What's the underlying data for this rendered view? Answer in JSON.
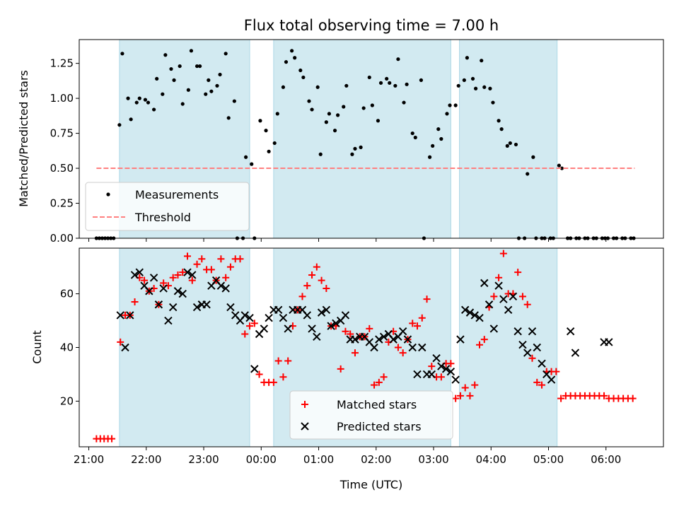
{
  "chart_data": [
    {
      "type": "scatter",
      "title": "Flux total observing time = 7.00 h",
      "xlabel": "",
      "ylabel": "Matched/Predicted stars",
      "xlim": [
        "20:50",
        "07:00"
      ],
      "ylim": [
        0,
        1.42
      ],
      "yticks": [
        0.0,
        0.25,
        0.5,
        0.75,
        1.0,
        1.25
      ],
      "ytick_labels": [
        "0.00",
        "0.25",
        "0.50",
        "0.75",
        "1.00",
        "1.25"
      ],
      "shaded_intervals": [
        [
          "21:32",
          "23:48"
        ],
        [
          "00:13",
          "03:18"
        ],
        [
          "03:27",
          "05:09"
        ]
      ],
      "shade_color": "#add8e6",
      "legend_position": "lower left",
      "series": [
        {
          "name": "Measurements",
          "color": "#000000",
          "marker": "dot",
          "x": [
            "21:08",
            "21:11",
            "21:14",
            "21:17",
            "21:20",
            "21:23",
            "21:26",
            "21:32",
            "21:35",
            "21:41",
            "21:44",
            "21:50",
            "21:53",
            "21:59",
            "22:02",
            "22:08",
            "22:11",
            "22:17",
            "22:20",
            "22:26",
            "22:29",
            "22:35",
            "22:38",
            "22:44",
            "22:47",
            "22:53",
            "22:56",
            "23:02",
            "23:05",
            "23:08",
            "23:14",
            "23:17",
            "23:23",
            "23:26",
            "23:32",
            "23:35",
            "23:41",
            "23:44",
            "23:50",
            "23:53",
            "23:59",
            "24:05",
            "24:08",
            "24:14",
            "24:17",
            "24:23",
            "24:26",
            "24:32",
            "24:35",
            "24:41",
            "24:44",
            "24:50",
            "24:53",
            "24:59",
            "25:02",
            "25:08",
            "25:11",
            "25:17",
            "25:20",
            "25:26",
            "25:29",
            "25:35",
            "25:38",
            "25:44",
            "25:47",
            "25:53",
            "25:56",
            "26:02",
            "26:05",
            "26:11",
            "26:14",
            "26:20",
            "26:23",
            "26:29",
            "26:32",
            "26:38",
            "26:41",
            "26:47",
            "26:50",
            "26:56",
            "26:59",
            "27:05",
            "27:08",
            "27:14",
            "27:17",
            "27:23",
            "27:26",
            "27:32",
            "27:35",
            "27:41",
            "27:44",
            "27:50",
            "27:53",
            "27:59",
            "28:02",
            "28:08",
            "28:11",
            "28:17",
            "28:20",
            "28:26",
            "28:29",
            "28:35",
            "28:38",
            "28:44",
            "28:47",
            "28:53",
            "28:56",
            "29:02",
            "29:05",
            "29:11",
            "29:14",
            "29:20",
            "29:23",
            "29:29",
            "29:32",
            "29:38",
            "29:41",
            "29:47",
            "29:50",
            "29:56",
            "29:59",
            "30:02",
            "30:08",
            "30:11",
            "30:17",
            "30:20",
            "30:26",
            "30:29"
          ],
          "y": [
            0,
            0,
            0,
            0,
            0,
            0,
            0,
            0.81,
            1.32,
            1.0,
            0.85,
            0.97,
            1.0,
            0.99,
            0.97,
            0.92,
            1.14,
            1.03,
            1.31,
            1.21,
            1.13,
            1.23,
            0.96,
            1.06,
            1.34,
            1.23,
            1.23,
            1.03,
            1.13,
            1.05,
            1.09,
            1.17,
            1.32,
            0.86,
            0.98,
            0,
            0,
            0.58,
            0.53,
            0,
            0.84,
            0.77,
            0.62,
            0.68,
            0.89,
            1.08,
            1.26,
            1.34,
            1.29,
            1.2,
            1.15,
            0.98,
            0.92,
            1.08,
            0.6,
            0.83,
            0.89,
            0.77,
            0.88,
            0.94,
            1.09,
            0.6,
            0.64,
            0.65,
            0.93,
            1.15,
            0.95,
            0.84,
            1.11,
            1.14,
            1.11,
            1.09,
            1.28,
            0.97,
            1.1,
            0.75,
            0.72,
            1.13,
            0,
            0.58,
            0.66,
            0.78,
            0.71,
            0.89,
            0.95,
            0.95,
            1.09,
            1.13,
            1.29,
            1.14,
            1.07,
            1.27,
            1.08,
            1.07,
            0.97,
            0.84,
            0.78,
            0.66,
            0.68,
            0.67,
            0,
            0,
            0.46,
            0.58,
            0,
            0,
            0,
            0,
            0,
            0.52,
            0.5,
            0,
            0,
            0,
            0,
            0,
            0,
            0,
            0,
            0,
            0,
            0,
            0,
            0,
            0,
            0,
            0,
            0
          ]
        },
        {
          "name": "Threshold",
          "color": "#ff8080",
          "line_style": "dashed",
          "x": [
            "21:08",
            "30:30"
          ],
          "y": [
            0.5,
            0.5
          ]
        }
      ]
    },
    {
      "type": "scatter",
      "title": "",
      "xlabel": "Time (UTC)",
      "ylabel": "Count",
      "xlim": [
        "20:50",
        "07:00"
      ],
      "ylim": [
        3,
        77
      ],
      "yticks": [
        20,
        40,
        60
      ],
      "ytick_labels": [
        "20",
        "40",
        "60"
      ],
      "xticks": [
        "21:00",
        "22:00",
        "23:00",
        "00:00",
        "01:00",
        "02:00",
        "03:00",
        "04:00",
        "05:00",
        "06:00"
      ],
      "shaded_intervals": [
        [
          "21:32",
          "23:48"
        ],
        [
          "00:13",
          "03:18"
        ],
        [
          "03:27",
          "05:09"
        ]
      ],
      "shade_color": "#add8e6",
      "legend_position": "lower center",
      "series": [
        {
          "name": "Matched stars",
          "color": "#ff0000",
          "marker": "plus",
          "x": [
            "21:08",
            "21:12",
            "21:16",
            "21:20",
            "21:24",
            "21:33",
            "21:38",
            "21:43",
            "21:48",
            "21:53",
            "21:58",
            "22:03",
            "22:08",
            "22:13",
            "22:18",
            "22:23",
            "22:28",
            "22:33",
            "22:38",
            "22:43",
            "22:48",
            "22:53",
            "22:58",
            "23:03",
            "23:08",
            "23:13",
            "23:18",
            "23:23",
            "23:28",
            "23:33",
            "23:38",
            "23:43",
            "23:48",
            "23:53",
            "23:58",
            "24:03",
            "24:08",
            "24:13",
            "24:18",
            "24:23",
            "24:28",
            "24:33",
            "24:38",
            "24:43",
            "24:48",
            "24:53",
            "24:58",
            "25:03",
            "25:08",
            "25:13",
            "25:18",
            "25:23",
            "25:28",
            "25:33",
            "25:38",
            "25:43",
            "25:48",
            "25:53",
            "25:58",
            "26:03",
            "26:08",
            "26:13",
            "26:18",
            "26:23",
            "26:28",
            "26:33",
            "26:38",
            "26:43",
            "26:48",
            "26:53",
            "26:58",
            "27:03",
            "27:08",
            "27:13",
            "27:18",
            "27:23",
            "27:28",
            "27:33",
            "27:38",
            "27:43",
            "27:48",
            "27:53",
            "27:58",
            "28:03",
            "28:08",
            "28:13",
            "28:18",
            "28:23",
            "28:28",
            "28:33",
            "28:38",
            "28:43",
            "28:48",
            "28:53",
            "28:58",
            "29:03",
            "29:08",
            "29:13",
            "29:18",
            "29:23",
            "29:28",
            "29:33",
            "29:38",
            "29:43",
            "29:48",
            "29:53",
            "29:58",
            "30:03",
            "30:08",
            "30:13",
            "30:18",
            "30:23",
            "30:28"
          ],
          "y": [
            6,
            6,
            6,
            6,
            6,
            42,
            52,
            52,
            57,
            66,
            65,
            61,
            62,
            56,
            64,
            63,
            66,
            67,
            68,
            74,
            65,
            71,
            73,
            69,
            69,
            65,
            73,
            66,
            70,
            73,
            73,
            45,
            48,
            49,
            30,
            27,
            27,
            27,
            35,
            29,
            35,
            48,
            54,
            59,
            63,
            67,
            70,
            65,
            62,
            48,
            48,
            32,
            46,
            45,
            38,
            44,
            44,
            47,
            26,
            27,
            29,
            42,
            46,
            40,
            38,
            43,
            49,
            48,
            51,
            58,
            33,
            29,
            29,
            34,
            34,
            21,
            22,
            25,
            22,
            26,
            41,
            43,
            55,
            59,
            66,
            75,
            60,
            60,
            68,
            59,
            56,
            36,
            27,
            26,
            31,
            31,
            31,
            21,
            22,
            22,
            22,
            22,
            22,
            22,
            22,
            22,
            22,
            21,
            21,
            21,
            21,
            21,
            21
          ]
        },
        {
          "name": "Predicted stars",
          "color": "#000000",
          "marker": "x",
          "x": [
            "21:33",
            "21:38",
            "21:43",
            "21:48",
            "21:53",
            "21:58",
            "22:03",
            "22:08",
            "22:13",
            "22:18",
            "22:23",
            "22:28",
            "22:33",
            "22:38",
            "22:43",
            "22:48",
            "22:53",
            "22:58",
            "23:03",
            "23:08",
            "23:13",
            "23:18",
            "23:23",
            "23:28",
            "23:33",
            "23:38",
            "23:43",
            "23:48",
            "23:53",
            "23:58",
            "24:03",
            "24:08",
            "24:13",
            "24:18",
            "24:23",
            "24:28",
            "24:33",
            "24:38",
            "24:43",
            "24:48",
            "24:53",
            "24:58",
            "25:03",
            "25:08",
            "25:13",
            "25:18",
            "25:23",
            "25:28",
            "25:33",
            "25:38",
            "25:43",
            "25:48",
            "25:53",
            "25:58",
            "26:03",
            "26:08",
            "26:13",
            "26:18",
            "26:23",
            "26:28",
            "26:33",
            "26:38",
            "26:43",
            "26:48",
            "26:53",
            "26:58",
            "27:03",
            "27:08",
            "27:13",
            "27:18",
            "27:23",
            "27:28",
            "27:33",
            "27:38",
            "27:43",
            "27:48",
            "27:53",
            "27:58",
            "28:03",
            "28:08",
            "28:13",
            "28:18",
            "28:23",
            "28:28",
            "28:33",
            "28:38",
            "28:43",
            "28:48",
            "28:53",
            "28:58",
            "29:03",
            "29:23",
            "29:28",
            "29:58",
            "30:03"
          ],
          "y": [
            52,
            40,
            52,
            67,
            68,
            63,
            61,
            66,
            56,
            62,
            50,
            55,
            61,
            60,
            68,
            67,
            55,
            56,
            56,
            63,
            65,
            63,
            62,
            55,
            52,
            50,
            52,
            51,
            32,
            45,
            47,
            51,
            54,
            54,
            51,
            47,
            54,
            54,
            54,
            52,
            47,
            44,
            53,
            54,
            48,
            49,
            50,
            52,
            43,
            43,
            44,
            44,
            42,
            40,
            43,
            44,
            45,
            43,
            44,
            46,
            43,
            40,
            30,
            40,
            30,
            30,
            36,
            33,
            32,
            31,
            28,
            43,
            54,
            53,
            52,
            51,
            64,
            56,
            47,
            63,
            58,
            54,
            59,
            46,
            41,
            38,
            46,
            40,
            34,
            30,
            28,
            46,
            38,
            42,
            42
          ]
        }
      ]
    }
  ]
}
